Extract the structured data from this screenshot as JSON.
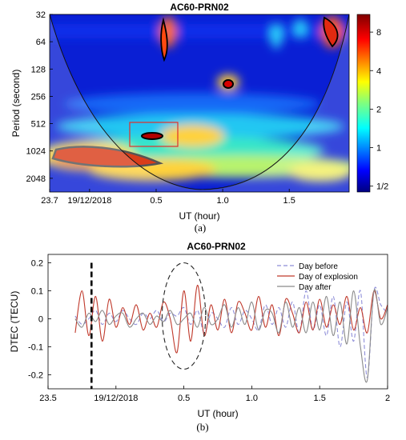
{
  "chart_data": [
    {
      "type": "heatmap",
      "title": "AC60-PRN02",
      "xlabel": "UT (hour)",
      "ylabel": "Period (second)",
      "x_tick_labels": [
        "23.7",
        "19/12/2018",
        "0.5",
        "1.0",
        "1.5"
      ],
      "x_tick_values": [
        23.7,
        24.0,
        24.5,
        25.0,
        25.5
      ],
      "xlim": [
        23.7,
        25.95
      ],
      "y_tick_labels": [
        "32",
        "64",
        "128",
        "256",
        "512",
        "1024",
        "2048"
      ],
      "y_tick_values": [
        32,
        64,
        128,
        256,
        512,
        1024,
        2048
      ],
      "ylim": [
        32,
        2900
      ],
      "y_scale": "log2",
      "y_reversed": true,
      "colorbar_tick_labels": [
        "8",
        "4",
        "2",
        "1",
        "1/2"
      ],
      "colorbar_tick_values": [
        8,
        4,
        2,
        1,
        0.5
      ],
      "colorbar_scale": "log2",
      "colormap": "jet",
      "hotspots": [
        {
          "x": 24.5,
          "period": 720,
          "power": 9
        },
        {
          "x": 23.85,
          "period": 1500,
          "power": 8
        },
        {
          "x": 25.05,
          "period": 200,
          "power": 7
        },
        {
          "x": 24.6,
          "period": 40,
          "power": 9
        },
        {
          "x": 25.85,
          "period": 40,
          "power": 8
        }
      ],
      "highlight_box": {
        "x": [
          24.34,
          24.68
        ],
        "period": [
          520,
          1080
        ]
      },
      "cone_of_influence": true,
      "subcaption": "(a)"
    },
    {
      "type": "line",
      "title": "AC60-PRN02",
      "xlabel": "UT (hour)",
      "ylabel": "DTEC (TECU)",
      "x_tick_labels": [
        "23.5",
        "19/12/2018",
        "0.5",
        "1.0",
        "1.5",
        "2"
      ],
      "x_tick_values": [
        23.5,
        24.0,
        24.5,
        25.0,
        25.5,
        26.0
      ],
      "xlim": [
        23.5,
        26.0
      ],
      "y_tick_labels": [
        "0.2",
        "0.1",
        "0",
        "-0.1",
        "-0.2"
      ],
      "y_tick_values": [
        0.2,
        0.1,
        0,
        -0.1,
        -0.2
      ],
      "ylim": [
        -0.25,
        0.23
      ],
      "explosion_marker_x": 23.82,
      "ellipse": {
        "center": [
          24.5,
          0.01
        ],
        "rx": 0.16,
        "ry": 0.19
      },
      "legend_position": "top-right",
      "series": [
        {
          "name": "Day before",
          "color": "#8e8ed8",
          "style": "dashed",
          "x": [
            23.7,
            23.75,
            23.8,
            23.85,
            23.9,
            23.95,
            24.0,
            24.05,
            24.1,
            24.15,
            24.2,
            24.25,
            24.3,
            24.35,
            24.4,
            24.45,
            24.5,
            24.55,
            24.6,
            24.65,
            24.7,
            24.75,
            24.8,
            24.85,
            24.9,
            24.95,
            25.0,
            25.05,
            25.1,
            25.15,
            25.2,
            25.25,
            25.3,
            25.35,
            25.4,
            25.45,
            25.5,
            25.55,
            25.6,
            25.65,
            25.7,
            25.75,
            25.8,
            25.85,
            25.9,
            25.95,
            26.0
          ],
          "y": [
            0.01,
            -0.02,
            0.0,
            0.03,
            -0.02,
            0.02,
            -0.01,
            0.03,
            0.0,
            -0.02,
            0.02,
            0.0,
            0.03,
            -0.01,
            0.02,
            0.01,
            0.04,
            -0.02,
            0.03,
            -0.05,
            0.02,
            0.0,
            -0.03,
            0.04,
            -0.02,
            0.03,
            0.0,
            -0.04,
            0.05,
            -0.02,
            0.04,
            -0.03,
            0.06,
            -0.05,
            0.1,
            -0.04,
            0.05,
            -0.06,
            0.08,
            -0.1,
            0.06,
            -0.08,
            0.1,
            -0.21,
            0.1,
            0.05,
            0.02
          ]
        },
        {
          "name": "Day of explosion",
          "color": "#c0392b",
          "style": "solid",
          "x": [
            23.7,
            23.75,
            23.8,
            23.85,
            23.9,
            23.95,
            24.0,
            24.05,
            24.1,
            24.15,
            24.2,
            24.25,
            24.3,
            24.35,
            24.4,
            24.45,
            24.5,
            24.55,
            24.6,
            24.65,
            24.7,
            24.75,
            24.8,
            24.85,
            24.9,
            24.95,
            25.0,
            25.05,
            25.1,
            25.15,
            25.2,
            25.25,
            25.3,
            25.35,
            25.4,
            25.45,
            25.5,
            25.55,
            25.6,
            25.65,
            25.7,
            25.75,
            25.8,
            25.85,
            25.9,
            25.95,
            26.0
          ],
          "y": [
            -0.05,
            0.1,
            -0.06,
            0.08,
            -0.08,
            0.07,
            -0.03,
            0.04,
            -0.02,
            0.05,
            -0.04,
            0.02,
            -0.03,
            0.06,
            0.0,
            -0.12,
            0.1,
            -0.08,
            0.12,
            -0.06,
            0.05,
            -0.04,
            0.07,
            -0.05,
            0.06,
            0.02,
            -0.04,
            0.08,
            -0.03,
            0.05,
            -0.06,
            0.07,
            0.02,
            -0.05,
            0.06,
            -0.04,
            0.07,
            -0.03,
            0.05,
            -0.02,
            0.08,
            -0.04,
            0.04,
            -0.05,
            0.1,
            0.0,
            0.05
          ]
        },
        {
          "name": "Day after",
          "color": "#8a8a8a",
          "style": "solid",
          "x": [
            23.7,
            23.75,
            23.8,
            23.85,
            23.9,
            23.95,
            24.0,
            24.05,
            24.1,
            24.15,
            24.2,
            24.25,
            24.3,
            24.35,
            24.4,
            24.45,
            24.5,
            24.55,
            24.6,
            24.65,
            24.7,
            24.75,
            24.8,
            24.85,
            24.9,
            24.95,
            25.0,
            25.05,
            25.1,
            25.15,
            25.2,
            25.25,
            25.3,
            25.35,
            25.4,
            25.45,
            25.5,
            25.55,
            25.6,
            25.65,
            25.7,
            25.75,
            25.8,
            25.85,
            25.9,
            25.95,
            26.0
          ],
          "y": [
            0.0,
            -0.03,
            0.02,
            -0.01,
            0.03,
            -0.02,
            0.01,
            0.02,
            -0.03,
            0.0,
            0.02,
            -0.02,
            0.01,
            -0.01,
            0.03,
            -0.02,
            0.0,
            0.02,
            -0.03,
            0.04,
            -0.02,
            0.0,
            0.05,
            -0.03,
            0.04,
            -0.02,
            0.06,
            -0.04,
            0.03,
            0.02,
            -0.05,
            0.06,
            -0.03,
            0.04,
            -0.05,
            0.06,
            -0.04,
            0.08,
            -0.06,
            0.06,
            -0.09,
            0.1,
            -0.1,
            -0.22,
            0.1,
            -0.02,
            0.04
          ]
        }
      ],
      "subcaption": "(b)"
    }
  ]
}
